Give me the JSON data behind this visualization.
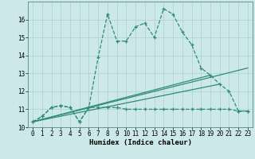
{
  "xlabel": "Humidex (Indice chaleur)",
  "background_color": "#cce8e8",
  "grid_color": "#b0d4d4",
  "line_color": "#2e8b7a",
  "xlim": [
    -0.5,
    23.5
  ],
  "ylim": [
    10.0,
    17.0
  ],
  "yticks": [
    10,
    11,
    12,
    13,
    14,
    15,
    16
  ],
  "xticks": [
    0,
    1,
    2,
    3,
    4,
    5,
    6,
    7,
    8,
    9,
    10,
    11,
    12,
    13,
    14,
    15,
    16,
    17,
    18,
    19,
    20,
    21,
    22,
    23
  ],
  "series1_x": [
    0,
    1,
    2,
    3,
    4,
    5,
    6,
    7,
    8,
    9,
    10,
    11,
    12,
    13,
    14,
    15,
    16,
    17,
    18,
    19,
    20,
    21,
    22,
    23
  ],
  "series1_y": [
    10.3,
    10.6,
    11.1,
    11.2,
    11.1,
    10.3,
    11.1,
    13.9,
    16.3,
    14.8,
    14.8,
    15.6,
    15.8,
    15.0,
    16.6,
    16.3,
    15.3,
    14.6,
    13.3,
    12.9,
    12.4,
    12.0,
    10.9,
    10.9
  ],
  "series2_x": [
    0,
    1,
    2,
    3,
    4,
    5,
    6,
    7,
    8,
    9,
    10,
    11,
    12,
    13,
    14,
    15,
    16,
    17,
    18,
    19,
    20,
    21,
    22,
    23
  ],
  "series2_y": [
    10.3,
    10.6,
    11.1,
    11.2,
    11.1,
    10.3,
    11.1,
    11.1,
    11.1,
    11.1,
    11.0,
    11.0,
    11.0,
    11.0,
    11.0,
    11.0,
    11.0,
    11.0,
    11.0,
    11.0,
    11.0,
    11.0,
    10.9,
    10.9
  ],
  "series3_x": [
    0,
    23
  ],
  "series3_y": [
    10.3,
    13.3
  ],
  "series4_x": [
    0,
    19
  ],
  "series4_y": [
    10.3,
    12.9
  ],
  "series5_x": [
    0,
    20
  ],
  "series5_y": [
    10.3,
    12.4
  ]
}
